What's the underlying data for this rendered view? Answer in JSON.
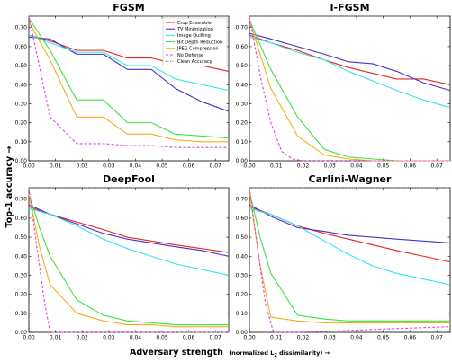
{
  "figure": {
    "ylabel": "Top-1 accuracy →",
    "xlabel_main": "Adversary strength",
    "xlabel_paren_pre": "(normalized L",
    "xlabel_paren_sub": "2",
    "xlabel_paren_post": " dissimilarity) →"
  },
  "colors": {
    "Crop Ensemble": "#e8241d",
    "TV Minimization": "#4b2fc4",
    "Image Quilting": "#2fe6ef",
    "Bit Depth Reduction": "#3ce33c",
    "JPEG Compression": "#f2ad1c",
    "No Defense": "#e040e3",
    "Clean Accuracy": "#7a7a7a"
  },
  "chart_data": [
    {
      "type": "line",
      "title": "FGSM",
      "xlim": [
        0,
        0.075
      ],
      "ylim": [
        0,
        0.76
      ],
      "xticks": [
        "0.00",
        "0.01",
        "0.02",
        "0.03",
        "0.04",
        "0.05",
        "0.06",
        "0.07"
      ],
      "yticks": [
        "0.00",
        "0.10",
        "0.20",
        "0.30",
        "0.40",
        "0.50",
        "0.60",
        "0.70"
      ],
      "legend": {
        "position": "top-right",
        "entries": [
          "Crop Ensemble",
          "TV Minimization",
          "Image Quilting",
          "Bit Depth Reduction",
          "JPEG Compression",
          "No Defense",
          "Clean Accuracy"
        ]
      },
      "clean_accuracy": 0.76,
      "series": [
        {
          "name": "Crop Ensemble",
          "style": "solid",
          "x": [
            0,
            0.008,
            0.018,
            0.028,
            0.037,
            0.046,
            0.055,
            0.065,
            0.075
          ],
          "y": [
            0.66,
            0.63,
            0.58,
            0.58,
            0.54,
            0.54,
            0.51,
            0.5,
            0.47
          ]
        },
        {
          "name": "TV Minimization",
          "style": "solid",
          "x": [
            0,
            0.008,
            0.018,
            0.028,
            0.037,
            0.046,
            0.055,
            0.065,
            0.075
          ],
          "y": [
            0.65,
            0.64,
            0.56,
            0.56,
            0.48,
            0.48,
            0.38,
            0.31,
            0.26
          ]
        },
        {
          "name": "Image Quilting",
          "style": "solid",
          "x": [
            0,
            0.008,
            0.018,
            0.028,
            0.037,
            0.046,
            0.055,
            0.065,
            0.075
          ],
          "y": [
            0.66,
            0.62,
            0.57,
            0.57,
            0.5,
            0.5,
            0.43,
            0.4,
            0.37
          ]
        },
        {
          "name": "Bit Depth Reduction",
          "style": "solid",
          "x": [
            0,
            0.008,
            0.018,
            0.028,
            0.037,
            0.046,
            0.055,
            0.065,
            0.075
          ],
          "y": [
            0.75,
            0.58,
            0.32,
            0.32,
            0.2,
            0.2,
            0.14,
            0.13,
            0.12
          ]
        },
        {
          "name": "JPEG Compression",
          "style": "solid",
          "x": [
            0,
            0.008,
            0.018,
            0.028,
            0.037,
            0.046,
            0.055,
            0.065,
            0.075
          ],
          "y": [
            0.73,
            0.53,
            0.23,
            0.23,
            0.14,
            0.14,
            0.11,
            0.1,
            0.1
          ]
        },
        {
          "name": "No Defense",
          "style": "dashed",
          "x": [
            0,
            0.008,
            0.018,
            0.028,
            0.037,
            0.046,
            0.055,
            0.065,
            0.075
          ],
          "y": [
            0.76,
            0.23,
            0.09,
            0.09,
            0.08,
            0.08,
            0.07,
            0.07,
            0.07
          ]
        }
      ]
    },
    {
      "type": "line",
      "title": "I-FGSM",
      "xlim": [
        0,
        0.075
      ],
      "ylim": [
        0,
        0.76
      ],
      "xticks": [
        "0.00",
        "0.01",
        "0.02",
        "0.03",
        "0.04",
        "0.05",
        "0.06",
        "0.07"
      ],
      "yticks": [
        "0.00",
        "0.10",
        "0.20",
        "0.30",
        "0.40",
        "0.50",
        "0.60",
        "0.70"
      ],
      "clean_accuracy": 0.76,
      "series": [
        {
          "name": "Crop Ensemble",
          "style": "solid",
          "x": [
            0,
            0.008,
            0.018,
            0.028,
            0.037,
            0.046,
            0.055,
            0.065,
            0.075
          ],
          "y": [
            0.66,
            0.62,
            0.58,
            0.53,
            0.49,
            0.46,
            0.43,
            0.43,
            0.4
          ]
        },
        {
          "name": "TV Minimization",
          "style": "solid",
          "x": [
            0,
            0.008,
            0.018,
            0.028,
            0.037,
            0.046,
            0.055,
            0.065,
            0.075
          ],
          "y": [
            0.67,
            0.64,
            0.6,
            0.56,
            0.52,
            0.51,
            0.47,
            0.41,
            0.37
          ]
        },
        {
          "name": "Image Quilting",
          "style": "solid",
          "x": [
            0,
            0.008,
            0.018,
            0.028,
            0.037,
            0.046,
            0.055,
            0.065,
            0.075
          ],
          "y": [
            0.65,
            0.62,
            0.57,
            0.53,
            0.47,
            0.42,
            0.37,
            0.32,
            0.28
          ]
        },
        {
          "name": "Bit Depth Reduction",
          "style": "solid",
          "x": [
            0,
            0.008,
            0.018,
            0.028,
            0.037,
            0.046,
            0.055,
            0.065,
            0.075
          ],
          "y": [
            0.74,
            0.48,
            0.23,
            0.06,
            0.02,
            0.01,
            0.0,
            0.0,
            0.0
          ]
        },
        {
          "name": "JPEG Compression",
          "style": "solid",
          "x": [
            0,
            0.008,
            0.018,
            0.028,
            0.037,
            0.046,
            0.055,
            0.065,
            0.075
          ],
          "y": [
            0.74,
            0.38,
            0.13,
            0.03,
            0.01,
            0.0,
            0.0,
            0.0,
            0.0
          ]
        },
        {
          "name": "No Defense",
          "style": "dashed",
          "x": [
            0,
            0.004,
            0.008,
            0.012,
            0.016,
            0.02,
            0.075
          ],
          "y": [
            0.76,
            0.45,
            0.2,
            0.05,
            0.01,
            0.0,
            0.0
          ]
        }
      ]
    },
    {
      "type": "line",
      "title": "DeepFool",
      "xlim": [
        0,
        0.075
      ],
      "ylim": [
        0,
        0.76
      ],
      "xticks": [
        "0.00",
        "0.01",
        "0.02",
        "0.03",
        "0.04",
        "0.05",
        "0.06",
        "0.07"
      ],
      "yticks": [
        "0.00",
        "0.10",
        "0.20",
        "0.30",
        "0.40",
        "0.50",
        "0.60",
        "0.70"
      ],
      "clean_accuracy": 0.76,
      "series": [
        {
          "name": "Crop Ensemble",
          "style": "solid",
          "x": [
            0,
            0.008,
            0.018,
            0.028,
            0.037,
            0.046,
            0.055,
            0.065,
            0.075
          ],
          "y": [
            0.66,
            0.62,
            0.58,
            0.54,
            0.5,
            0.48,
            0.46,
            0.44,
            0.42
          ]
        },
        {
          "name": "TV Minimization",
          "style": "solid",
          "x": [
            0,
            0.008,
            0.018,
            0.028,
            0.037,
            0.046,
            0.055,
            0.065,
            0.075
          ],
          "y": [
            0.67,
            0.62,
            0.57,
            0.52,
            0.49,
            0.47,
            0.45,
            0.43,
            0.4
          ]
        },
        {
          "name": "Image Quilting",
          "style": "solid",
          "x": [
            0,
            0.008,
            0.018,
            0.028,
            0.037,
            0.046,
            0.055,
            0.065,
            0.075
          ],
          "y": [
            0.65,
            0.62,
            0.56,
            0.49,
            0.44,
            0.4,
            0.36,
            0.33,
            0.3
          ]
        },
        {
          "name": "Bit Depth Reduction",
          "style": "solid",
          "x": [
            0,
            0.004,
            0.008,
            0.018,
            0.028,
            0.037,
            0.046,
            0.055,
            0.065,
            0.075
          ],
          "y": [
            0.73,
            0.55,
            0.4,
            0.17,
            0.09,
            0.06,
            0.05,
            0.04,
            0.04,
            0.04
          ]
        },
        {
          "name": "JPEG Compression",
          "style": "solid",
          "x": [
            0,
            0.004,
            0.008,
            0.018,
            0.028,
            0.037,
            0.046,
            0.055,
            0.065,
            0.075
          ],
          "y": [
            0.73,
            0.45,
            0.25,
            0.1,
            0.06,
            0.04,
            0.04,
            0.03,
            0.03,
            0.03
          ]
        },
        {
          "name": "No Defense",
          "style": "dashed",
          "x": [
            0,
            0.003,
            0.006,
            0.008,
            0.075
          ],
          "y": [
            0.76,
            0.45,
            0.15,
            0.0,
            0.0
          ]
        }
      ]
    },
    {
      "type": "line",
      "title": "Carlini-Wagner",
      "xlim": [
        0,
        0.075
      ],
      "ylim": [
        0,
        0.76
      ],
      "xticks": [
        "0.00",
        "0.01",
        "0.02",
        "0.03",
        "0.04",
        "0.05",
        "0.06",
        "0.07"
      ],
      "yticks": [
        "0.00",
        "0.10",
        "0.20",
        "0.30",
        "0.40",
        "0.50",
        "0.60",
        "0.70"
      ],
      "clean_accuracy": 0.76,
      "series": [
        {
          "name": "Crop Ensemble",
          "style": "solid",
          "x": [
            0,
            0.008,
            0.018,
            0.028,
            0.037,
            0.046,
            0.055,
            0.065,
            0.075
          ],
          "y": [
            0.66,
            0.62,
            0.56,
            0.52,
            0.49,
            0.46,
            0.43,
            0.4,
            0.37
          ]
        },
        {
          "name": "TV Minimization",
          "style": "solid",
          "x": [
            0,
            0.008,
            0.018,
            0.028,
            0.037,
            0.046,
            0.055,
            0.065,
            0.075
          ],
          "y": [
            0.67,
            0.61,
            0.55,
            0.53,
            0.51,
            0.5,
            0.49,
            0.48,
            0.47
          ]
        },
        {
          "name": "Image Quilting",
          "style": "solid",
          "x": [
            0,
            0.008,
            0.018,
            0.028,
            0.037,
            0.046,
            0.055,
            0.065,
            0.075
          ],
          "y": [
            0.65,
            0.62,
            0.56,
            0.48,
            0.41,
            0.35,
            0.31,
            0.28,
            0.25
          ]
        },
        {
          "name": "Bit Depth Reduction",
          "style": "solid",
          "x": [
            0,
            0.004,
            0.008,
            0.018,
            0.028,
            0.037,
            0.046,
            0.055,
            0.065,
            0.075
          ],
          "y": [
            0.74,
            0.5,
            0.31,
            0.09,
            0.07,
            0.06,
            0.06,
            0.06,
            0.06,
            0.06
          ]
        },
        {
          "name": "JPEG Compression",
          "style": "solid",
          "x": [
            0,
            0.004,
            0.008,
            0.018,
            0.028,
            0.037,
            0.046,
            0.055,
            0.065,
            0.075
          ],
          "y": [
            0.74,
            0.35,
            0.08,
            0.06,
            0.05,
            0.05,
            0.05,
            0.05,
            0.05,
            0.05
          ]
        },
        {
          "name": "No Defense",
          "style": "dashed",
          "x": [
            0,
            0.003,
            0.006,
            0.009,
            0.018,
            0.037,
            0.055,
            0.075
          ],
          "y": [
            0.76,
            0.45,
            0.15,
            0.0,
            0.0,
            0.01,
            0.02,
            0.03
          ]
        }
      ]
    }
  ]
}
